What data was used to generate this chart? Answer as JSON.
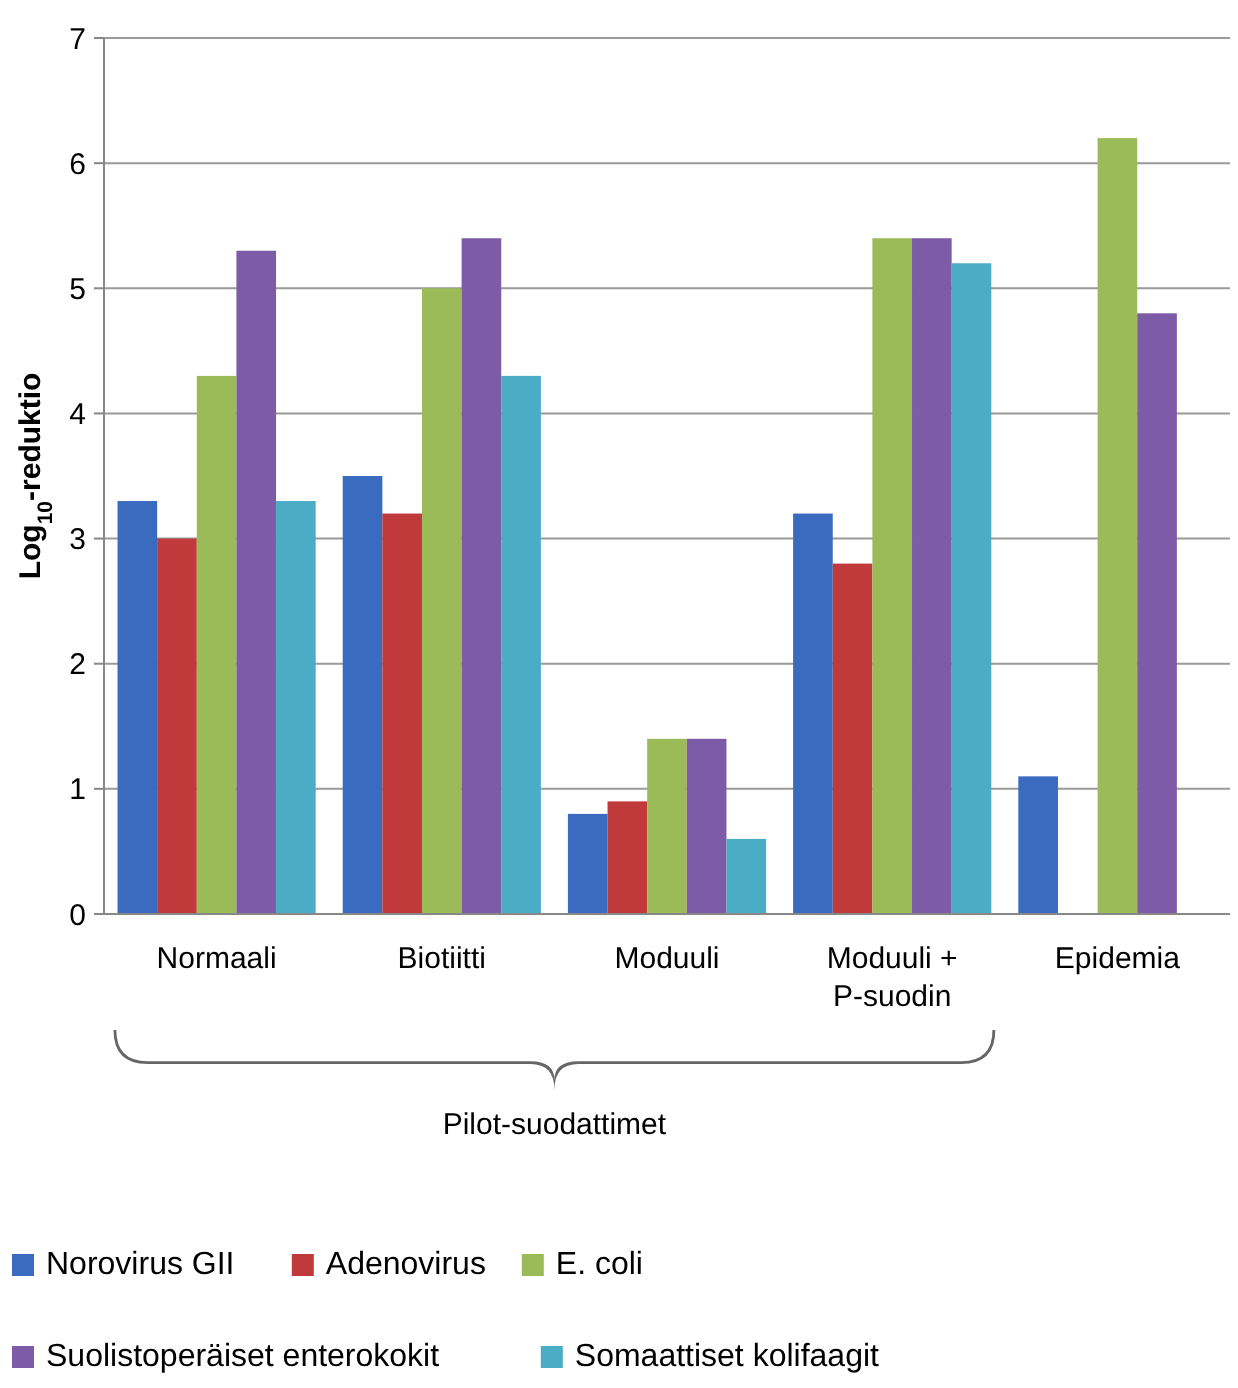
{
  "chart_data": {
    "type": "bar",
    "ylabel": "Log$_{10}$-reduktio",
    "categories": [
      "Normaali",
      "Biotiitti",
      "Moduuli",
      "Moduuli +\nP-suodin",
      "Epidemia"
    ],
    "series": [
      {
        "name": "Norovirus GII",
        "color": "#3a6bbf",
        "values": [
          3.3,
          3.5,
          0.8,
          3.2,
          1.1
        ]
      },
      {
        "name": "Adenovirus",
        "color": "#c0393b",
        "values": [
          3.0,
          3.2,
          0.9,
          2.8,
          null
        ]
      },
      {
        "name": "E. coli",
        "color": "#9bbb59",
        "values": [
          4.3,
          5.0,
          1.4,
          5.4,
          6.2
        ]
      },
      {
        "name": "Suolistoperäiset enterokokit",
        "color": "#7d5ba6",
        "values": [
          5.3,
          5.4,
          1.4,
          5.4,
          4.8
        ]
      },
      {
        "name": "Somaattiset kolifaagit",
        "color": "#4bacc6",
        "values": [
          3.3,
          4.3,
          0.6,
          5.2,
          null
        ]
      }
    ],
    "ylim": [
      0,
      7
    ],
    "yticks": [
      0,
      1,
      2,
      3,
      4,
      5,
      6,
      7
    ],
    "grid": "y",
    "legend": "bottom",
    "annotations": [
      "Pilot-suodattimet"
    ]
  }
}
